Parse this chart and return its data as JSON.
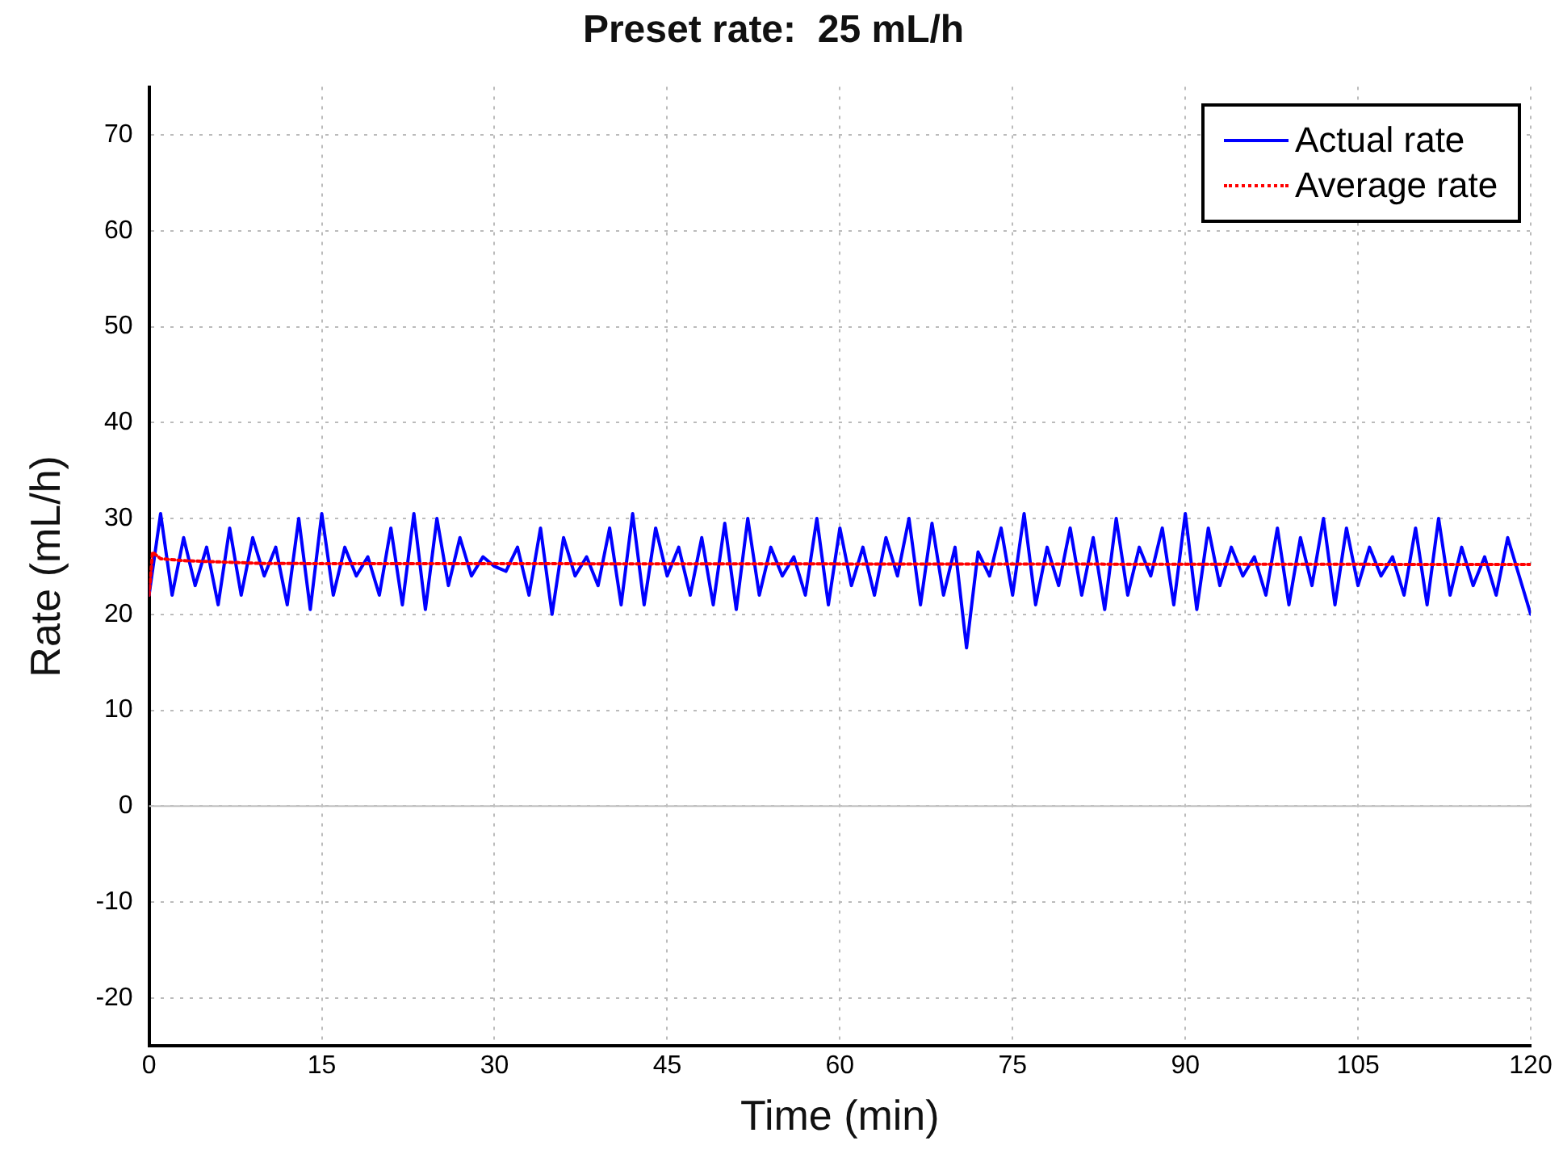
{
  "chart_data": {
    "type": "line",
    "title": "Preset rate:  25 mL/h",
    "xlabel": "Time (min)",
    "ylabel": "Rate (mL/h)",
    "xlim": [
      0,
      120
    ],
    "xticks": [
      0,
      15,
      30,
      45,
      60,
      75,
      90,
      105,
      120
    ],
    "ylim": [
      -25,
      75
    ],
    "yticks": [
      -20,
      -10,
      0,
      10,
      20,
      30,
      40,
      50,
      60,
      70
    ],
    "grid": true,
    "legend": "top right",
    "marker": "none",
    "ref_lines": [
      {
        "axis": "y",
        "value": 0,
        "color": "#c0c0c0"
      }
    ],
    "series": [
      {
        "name": "Actual rate",
        "color": "#0000ff",
        "line_style": "solid",
        "x": [
          0,
          1,
          2,
          3,
          4,
          5,
          6,
          7,
          8,
          9,
          10,
          11,
          12,
          13,
          14,
          15,
          16,
          17,
          18,
          19,
          20,
          21,
          22,
          23,
          24,
          25,
          26,
          27,
          28,
          29,
          30,
          31,
          32,
          33,
          34,
          35,
          36,
          37,
          38,
          39,
          40,
          41,
          42,
          43,
          44,
          45,
          46,
          47,
          48,
          49,
          50,
          51,
          52,
          53,
          54,
          55,
          56,
          57,
          58,
          59,
          60,
          61,
          62,
          63,
          64,
          65,
          66,
          67,
          68,
          69,
          70,
          71,
          72,
          73,
          74,
          75,
          76,
          77,
          78,
          79,
          80,
          81,
          82,
          83,
          84,
          85,
          86,
          87,
          88,
          89,
          90,
          91,
          92,
          93,
          94,
          95,
          96,
          97,
          98,
          99,
          100,
          101,
          102,
          103,
          104,
          105,
          106,
          107,
          108,
          109,
          110,
          111,
          112,
          113,
          114,
          115,
          116,
          117,
          118,
          119,
          120
        ],
        "values": [
          22,
          30.5,
          22,
          28,
          23,
          27,
          21,
          29,
          22,
          28,
          24,
          27,
          21,
          30,
          20.5,
          30.5,
          22,
          27,
          24,
          26,
          22,
          29,
          21,
          30.5,
          20.5,
          30,
          23,
          28,
          24,
          26,
          25,
          24.5,
          27,
          22,
          29,
          20,
          28,
          24,
          26,
          23,
          29,
          21,
          30.5,
          21,
          29,
          24,
          27,
          22,
          28,
          21,
          29.5,
          20.5,
          30,
          22,
          27,
          24,
          26,
          22,
          30,
          21,
          29,
          23,
          27,
          22,
          28,
          24,
          30,
          21,
          29.5,
          22,
          27,
          16.5,
          26.5,
          24,
          29,
          22,
          30.5,
          21,
          27,
          23,
          29,
          22,
          28,
          20.5,
          30,
          22,
          27,
          24,
          29,
          21,
          30.5,
          20.5,
          29,
          23,
          27,
          24,
          26,
          22,
          29,
          21,
          28,
          23,
          30,
          21,
          29,
          23,
          27,
          24,
          26,
          22,
          29,
          21,
          30,
          22,
          27,
          23,
          26,
          22,
          28,
          24,
          20
        ]
      },
      {
        "name": "Average rate",
        "color": "#ff0000",
        "line_style": "dotted",
        "x": [
          0,
          0.3,
          1,
          3,
          10,
          120
        ],
        "values": [
          22,
          26.5,
          25.8,
          25.6,
          25.3,
          25.2
        ]
      }
    ]
  }
}
